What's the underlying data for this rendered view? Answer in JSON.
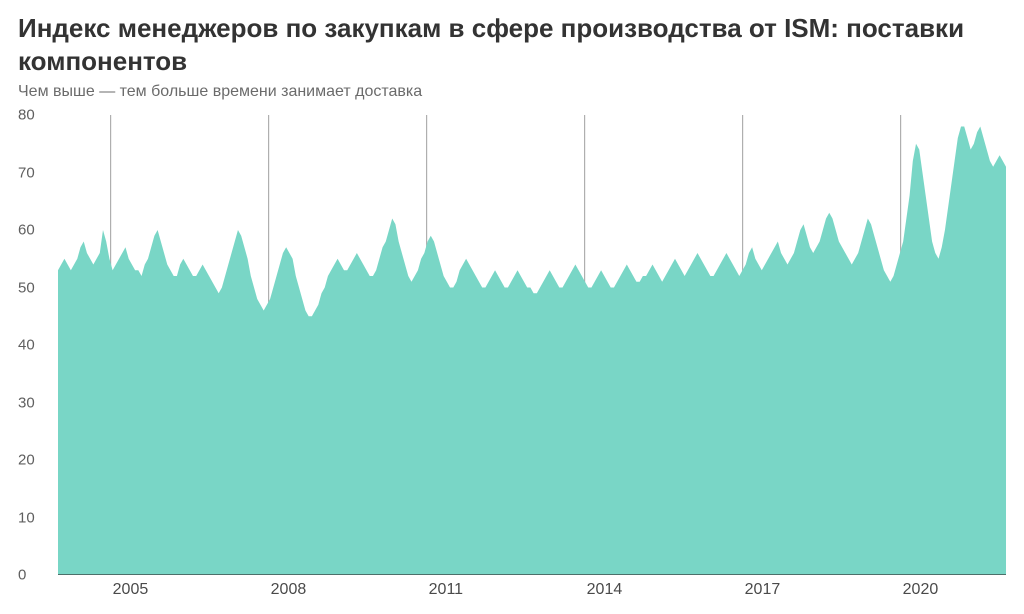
{
  "title": "Индекс менеджеров по закупкам в сфере производства от ISM: поставки компонентов",
  "subtitle": "Чем выше — тем больше времени занимает доставка",
  "chart": {
    "type": "area",
    "fill_color": "#79d6c6",
    "grid_color": "#9f9f9f",
    "baseline_color": "#333333",
    "background_color": "#ffffff",
    "title_color": "#333333",
    "subtitle_color": "#6b6b6b",
    "tick_color": "#5f5f5f",
    "title_fontsize": 26,
    "subtitle_fontsize": 16,
    "tick_fontsize": 15,
    "ylim": [
      0,
      80
    ],
    "ytick_step": 10,
    "y_ticks": [
      0,
      10,
      20,
      30,
      40,
      50,
      60,
      70,
      80
    ],
    "x_start_year": 2004,
    "x_end_year": 2022,
    "x_tick_years": [
      2005,
      2008,
      2011,
      2014,
      2017,
      2020
    ],
    "series": [
      53,
      54,
      55,
      54,
      53,
      54,
      55,
      57,
      58,
      56,
      55,
      54,
      55,
      56,
      60,
      58,
      55,
      53,
      54,
      55,
      56,
      57,
      55,
      54,
      53,
      53,
      52,
      54,
      55,
      57,
      59,
      60,
      58,
      56,
      54,
      53,
      52,
      52,
      54,
      55,
      54,
      53,
      52,
      52,
      53,
      54,
      53,
      52,
      51,
      50,
      49,
      50,
      52,
      54,
      56,
      58,
      60,
      59,
      57,
      55,
      52,
      50,
      48,
      47,
      46,
      47,
      48,
      50,
      52,
      54,
      56,
      57,
      56,
      55,
      52,
      50,
      48,
      46,
      45,
      45,
      46,
      47,
      49,
      50,
      52,
      53,
      54,
      55,
      54,
      53,
      53,
      54,
      55,
      56,
      55,
      54,
      53,
      52,
      52,
      53,
      55,
      57,
      58,
      60,
      62,
      61,
      58,
      56,
      54,
      52,
      51,
      52,
      53,
      55,
      56,
      58,
      59,
      58,
      56,
      54,
      52,
      51,
      50,
      50,
      51,
      53,
      54,
      55,
      54,
      53,
      52,
      51,
      50,
      50,
      51,
      52,
      53,
      52,
      51,
      50,
      50,
      51,
      52,
      53,
      52,
      51,
      50,
      50,
      49,
      49,
      50,
      51,
      52,
      53,
      52,
      51,
      50,
      50,
      51,
      52,
      53,
      54,
      53,
      52,
      51,
      50,
      50,
      51,
      52,
      53,
      52,
      51,
      50,
      50,
      51,
      52,
      53,
      54,
      53,
      52,
      51,
      51,
      52,
      52,
      53,
      54,
      53,
      52,
      51,
      52,
      53,
      54,
      55,
      54,
      53,
      52,
      53,
      54,
      55,
      56,
      55,
      54,
      53,
      52,
      52,
      53,
      54,
      55,
      56,
      55,
      54,
      53,
      52,
      53,
      54,
      56,
      57,
      55,
      54,
      53,
      54,
      55,
      56,
      57,
      58,
      56,
      55,
      54,
      55,
      56,
      58,
      60,
      61,
      59,
      57,
      56,
      57,
      58,
      60,
      62,
      63,
      62,
      60,
      58,
      57,
      56,
      55,
      54,
      55,
      56,
      58,
      60,
      62,
      61,
      59,
      57,
      55,
      53,
      52,
      51,
      52,
      54,
      56,
      58,
      62,
      66,
      72,
      75,
      74,
      70,
      66,
      62,
      58,
      56,
      55,
      57,
      60,
      64,
      68,
      72,
      76,
      78,
      78,
      76,
      74,
      75,
      77,
      78,
      76,
      74,
      72,
      71,
      72,
      73,
      72,
      71
    ]
  }
}
